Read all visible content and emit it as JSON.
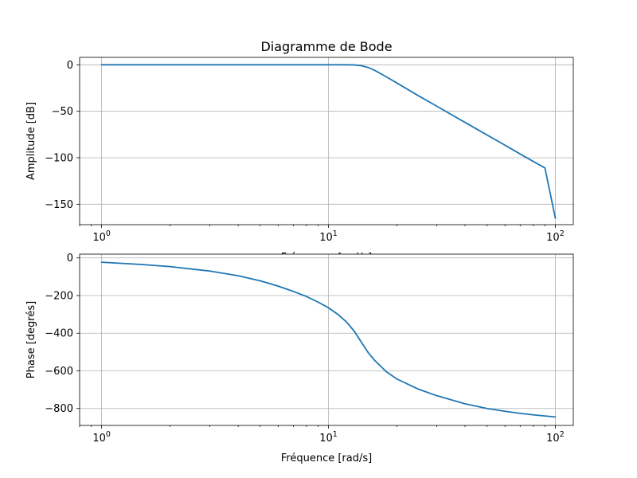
{
  "chart_data": [
    {
      "type": "line",
      "title": "Diagramme de Bode",
      "xlabel": "Fréquence [rad/s]",
      "ylabel": "Amplitude [dB]",
      "xscale": "log",
      "xlim": [
        0.8,
        120
      ],
      "ylim": [
        -172,
        8
      ],
      "xticks": [
        {
          "value": 1,
          "label": "10",
          "exp": "0"
        },
        {
          "value": 10,
          "label": "10",
          "exp": "1"
        },
        {
          "value": 100,
          "label": "10",
          "exp": "2"
        }
      ],
      "yticks": [
        {
          "value": 0,
          "label": "0"
        },
        {
          "value": -50,
          "label": "−50"
        },
        {
          "value": -100,
          "label": "−100"
        },
        {
          "value": -150,
          "label": "−150"
        }
      ],
      "grid": true,
      "color": "#1f77b4",
      "series": [
        {
          "x": [
            1,
            2,
            4,
            6,
            8,
            10,
            12,
            13,
            14,
            15,
            16,
            18,
            20,
            25,
            30,
            40,
            50,
            60,
            70,
            80,
            90,
            100
          ],
          "values": [
            0,
            0,
            0,
            0,
            0,
            0,
            0,
            -0.2,
            -1,
            -3,
            -6,
            -13,
            -19.5,
            -33.5,
            -44.5,
            -62,
            -75.5,
            -86.5,
            -96,
            -104,
            -111,
            -165
          ]
        }
      ]
    },
    {
      "type": "line",
      "title": "",
      "xlabel": "Fréquence [rad/s]",
      "ylabel": "Phase [degrés]",
      "xscale": "log",
      "xlim": [
        0.8,
        120
      ],
      "ylim": [
        -890,
        20
      ],
      "xticks": [
        {
          "value": 1,
          "label": "10",
          "exp": "0"
        },
        {
          "value": 10,
          "label": "10",
          "exp": "1"
        },
        {
          "value": 100,
          "label": "10",
          "exp": "2"
        }
      ],
      "yticks": [
        {
          "value": 0,
          "label": "0"
        },
        {
          "value": -200,
          "label": "−200"
        },
        {
          "value": -400,
          "label": "−400"
        },
        {
          "value": -600,
          "label": "−600"
        },
        {
          "value": -800,
          "label": "−800"
        }
      ],
      "grid": true,
      "color": "#1f77b4",
      "series": [
        {
          "x": [
            1,
            1.5,
            2,
            3,
            4,
            5,
            6,
            7,
            8,
            9,
            10,
            11,
            12,
            13,
            14,
            15,
            16,
            18,
            20,
            25,
            30,
            40,
            50,
            60,
            70,
            80,
            100
          ],
          "values": [
            -23,
            -35,
            -46,
            -70,
            -95,
            -122,
            -150,
            -178,
            -205,
            -235,
            -265,
            -300,
            -340,
            -390,
            -450,
            -505,
            -545,
            -605,
            -643,
            -698,
            -732,
            -775,
            -800,
            -815,
            -826,
            -834,
            -845
          ]
        }
      ]
    }
  ]
}
